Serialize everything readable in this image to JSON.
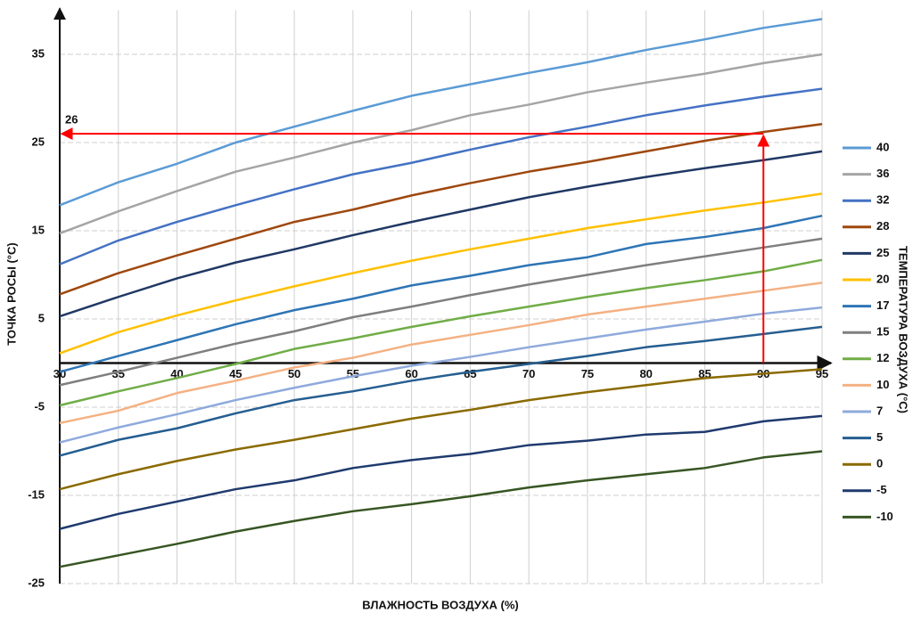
{
  "chart_data": {
    "type": "line",
    "x_label": "ВЛАЖНОСТЬ ВОЗДУХА (%)",
    "y_label": "ТОЧКА РОСЫ (°C)",
    "legend_title": "ТЕМПЕРАТУРА ВОЗДУХА (°C)",
    "x": [
      30,
      35,
      40,
      45,
      50,
      55,
      60,
      65,
      70,
      75,
      80,
      85,
      90,
      95
    ],
    "xlim": [
      30,
      95
    ],
    "xticks": [
      30,
      35,
      40,
      45,
      50,
      55,
      60,
      65,
      70,
      75,
      80,
      85,
      90,
      95
    ],
    "ylim": [
      -25,
      40
    ],
    "yticks": [
      -25,
      -15,
      -5,
      5,
      15,
      25,
      35
    ],
    "grid": true,
    "legend": "right",
    "series": [
      {
        "name": "40",
        "color": "#5b9bd5",
        "values": [
          17.9,
          20.5,
          22.6,
          25,
          26.8,
          28.6,
          30.3,
          31.6,
          32.9,
          34.1,
          35.5,
          36.7,
          38,
          39
        ]
      },
      {
        "name": "36",
        "color": "#a5a5a5",
        "values": [
          14.7,
          17.2,
          19.5,
          21.7,
          23.3,
          25,
          26.4,
          28.1,
          29.3,
          30.7,
          31.8,
          32.8,
          34,
          35
        ]
      },
      {
        "name": "32",
        "color": "#4472c4",
        "values": [
          11.2,
          13.9,
          16,
          17.9,
          19.7,
          21.4,
          22.7,
          24.2,
          25.6,
          26.8,
          28.1,
          29.2,
          30.2,
          31.1
        ]
      },
      {
        "name": "28",
        "color": "#9e480e",
        "values": [
          7.8,
          10.2,
          12.2,
          14.1,
          16,
          17.4,
          19,
          20.4,
          21.7,
          22.8,
          24,
          25.2,
          26.2,
          27.1
        ]
      },
      {
        "name": "25",
        "color": "#203864",
        "values": [
          5.3,
          7.5,
          9.6,
          11.4,
          12.9,
          14.5,
          16,
          17.4,
          18.8,
          20,
          21.1,
          22.1,
          23,
          24
        ]
      },
      {
        "name": "20",
        "color": "#ffc000",
        "values": [
          1.1,
          3.5,
          5.4,
          7.1,
          8.7,
          10.2,
          11.6,
          12.9,
          14.1,
          15.3,
          16.3,
          17.3,
          18.2,
          19.2
        ]
      },
      {
        "name": "17",
        "color": "#2e75b6",
        "values": [
          -1,
          0.8,
          2.6,
          4.4,
          6,
          7.3,
          8.8,
          9.9,
          11.1,
          12,
          13.5,
          14.3,
          15.3,
          16.7
        ]
      },
      {
        "name": "15",
        "color": "#7f7f7f",
        "values": [
          -2.5,
          -1,
          0.6,
          2.2,
          3.6,
          5.2,
          6.4,
          7.7,
          8.9,
          10,
          11.1,
          12.1,
          13.1,
          14.1
        ]
      },
      {
        "name": "12",
        "color": "#70ad47",
        "values": [
          -4.8,
          -3.2,
          -1.7,
          -0.1,
          1.6,
          2.8,
          4.1,
          5.3,
          6.4,
          7.5,
          8.5,
          9.4,
          10.4,
          11.7
        ]
      },
      {
        "name": "10",
        "color": "#f4b183",
        "values": [
          -6.8,
          -5.4,
          -3.4,
          -2,
          -0.5,
          0.6,
          2.1,
          3.2,
          4.3,
          5.5,
          6.4,
          7.3,
          8.2,
          9.1
        ]
      },
      {
        "name": "7",
        "color": "#8faadc",
        "values": [
          -9,
          -7.3,
          -5.8,
          -4.2,
          -2.8,
          -1.5,
          -0.3,
          0.7,
          1.8,
          2.8,
          3.8,
          4.7,
          5.6,
          6.3
        ]
      },
      {
        "name": "5",
        "color": "#255e91",
        "values": [
          -10.5,
          -8.7,
          -7.4,
          -5.7,
          -4.2,
          -3.2,
          -2,
          -1,
          -0.1,
          0.8,
          1.8,
          2.5,
          3.3,
          4.1
        ]
      },
      {
        "name": "0",
        "color": "#8a6a00",
        "values": [
          -14.3,
          -12.6,
          -11.1,
          -9.8,
          -8.7,
          -7.5,
          -6.3,
          -5.3,
          -4.2,
          -3.3,
          -2.5,
          -1.7,
          -1.2,
          -0.7
        ]
      },
      {
        "name": "-5",
        "color": "#1f3a6e",
        "values": [
          -18.8,
          -17.1,
          -15.7,
          -14.3,
          -13.3,
          -11.9,
          -11,
          -10.3,
          -9.3,
          -8.8,
          -8.1,
          -7.8,
          -6.6,
          -6
        ]
      },
      {
        "name": "-10",
        "color": "#375623",
        "values": [
          -23.1,
          -21.8,
          -20.5,
          -19.1,
          -17.9,
          -16.8,
          -16,
          -15.1,
          -14.1,
          -13.3,
          -12.6,
          -11.9,
          -10.7,
          -10
        ]
      }
    ],
    "annotation": {
      "label": "26",
      "x": 90,
      "y": 26,
      "color": "#ff0000"
    }
  }
}
